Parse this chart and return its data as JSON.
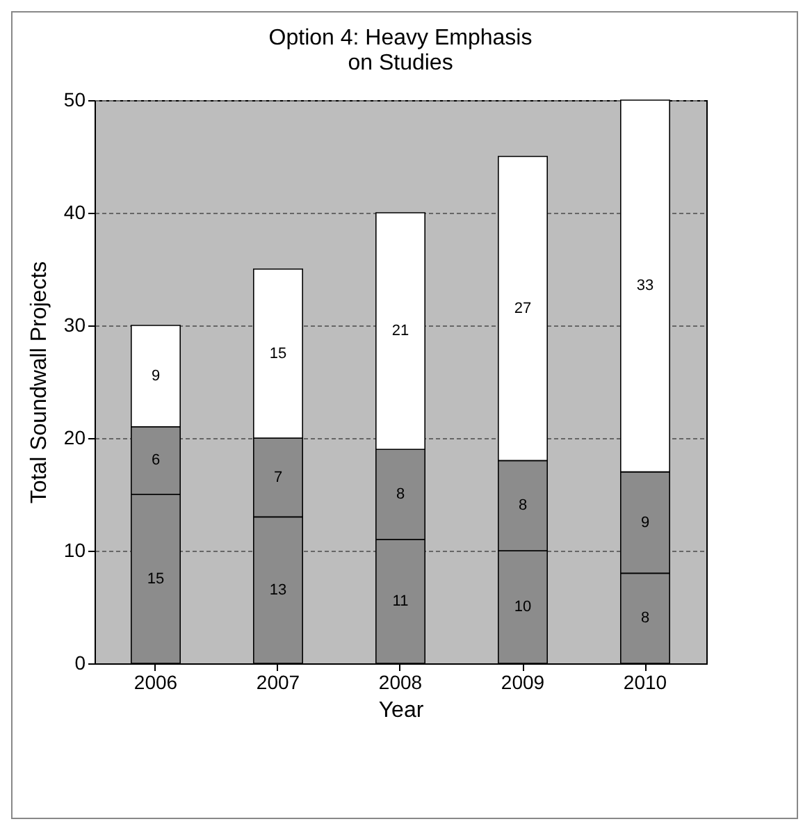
{
  "chart_data": {
    "type": "bar",
    "title": "Option 4: Heavy Emphasis\non Studies",
    "xlabel": "Year",
    "ylabel": "Total Soundwall Projects",
    "categories": [
      "2006",
      "2007",
      "2008",
      "2009",
      "2010"
    ],
    "series": [
      {
        "color": "#8c8c8c",
        "values": [
          15,
          13,
          11,
          10,
          8
        ]
      },
      {
        "color": "#8c8c8c",
        "values": [
          6,
          7,
          8,
          8,
          9
        ]
      },
      {
        "color": "#ffffff",
        "values": [
          9,
          15,
          21,
          27,
          33
        ]
      }
    ],
    "stacked": true,
    "data_labels": true,
    "ylim": [
      0,
      50
    ],
    "yticks": [
      0,
      10,
      20,
      30,
      40,
      50
    ],
    "grid": "y",
    "legend": false
  }
}
